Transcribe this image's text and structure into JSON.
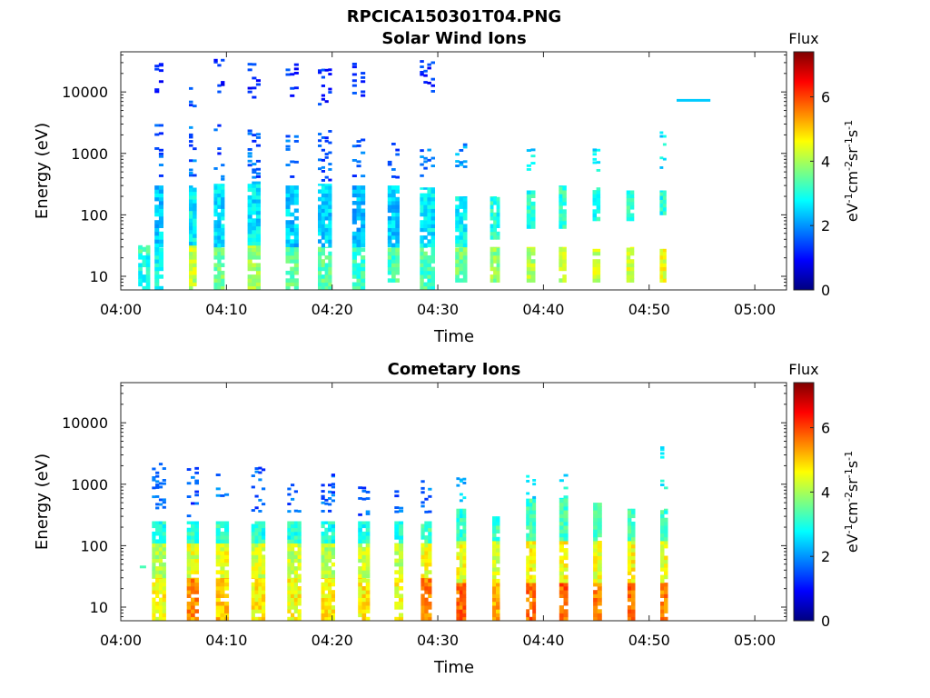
{
  "figure": {
    "title": "RPCICA150301T04.PNG"
  },
  "colorbar": {
    "label": "Flux",
    "unit_base": [
      "eV",
      "cm",
      "sr",
      "s"
    ],
    "unit_exp": [
      "-1",
      "-2",
      "-1",
      "-1"
    ],
    "range": [
      0,
      7.4
    ],
    "ticks": [
      0,
      2,
      4,
      6
    ],
    "stops": [
      "#00007f",
      "#0000ff",
      "#007fff",
      "#00ffff",
      "#7fff7f",
      "#ffff00",
      "#ff7f00",
      "#ff0000",
      "#7f0000"
    ]
  },
  "chart_data": [
    {
      "type": "heatmap",
      "title": "Solar Wind Ions",
      "xlabel": "Time",
      "ylabel": "Energy (eV)",
      "xlim": [
        "04:00",
        "05:03"
      ],
      "ylim": [
        6,
        45000
      ],
      "yscale": "log",
      "xticks": [
        "04:00",
        "04:10",
        "04:20",
        "04:30",
        "04:40",
        "04:50",
        "05:00"
      ],
      "yticks": [
        10,
        100,
        1000,
        10000
      ],
      "sweeps": [
        {
          "t": 2.2,
          "w": 1.1,
          "low": [
            [
              6,
              30,
              2.9
            ],
            [
              24,
              32,
              3.5
            ]
          ],
          "high": []
        },
        {
          "t": 3.6,
          "w": 0.8,
          "low": [
            [
              6,
              30,
              2.8
            ],
            [
              30,
              300,
              2.4
            ]
          ],
          "high": [
            [
              400,
              3000,
              1.6
            ],
            [
              8000,
              30000,
              1.2
            ]
          ]
        },
        {
          "t": 6.8,
          "w": 0.7,
          "low": [
            [
              6,
              32,
              4.2
            ],
            [
              32,
              300,
              2.7
            ]
          ],
          "high": [
            [
              400,
              3000,
              1.7
            ],
            [
              5000,
              12000,
              1.4
            ]
          ]
        },
        {
          "t": 9.3,
          "w": 1.0,
          "low": [
            [
              6,
              30,
              3.6
            ],
            [
              30,
              320,
              2.5
            ]
          ],
          "high": [
            [
              350,
              3000,
              1.5
            ],
            [
              8000,
              35000,
              1.1
            ]
          ]
        },
        {
          "t": 12.6,
          "w": 1.2,
          "low": [
            [
              6,
              32,
              3.9
            ],
            [
              32,
              350,
              2.6
            ]
          ],
          "high": [
            [
              400,
              2500,
              1.6
            ],
            [
              8000,
              30000,
              1.2
            ]
          ]
        },
        {
          "t": 16.2,
          "w": 1.2,
          "low": [
            [
              6,
              30,
              3.5
            ],
            [
              30,
              300,
              2.4
            ]
          ],
          "high": [
            [
              400,
              2000,
              1.6
            ],
            [
              8000,
              30000,
              1.2
            ]
          ]
        },
        {
          "t": 19.3,
          "w": 1.3,
          "low": [
            [
              6,
              30,
              3.4
            ],
            [
              30,
              320,
              2.5
            ]
          ],
          "high": [
            [
              350,
              2500,
              1.5
            ],
            [
              6000,
              25000,
              1.2
            ]
          ]
        },
        {
          "t": 22.5,
          "w": 1.2,
          "low": [
            [
              6,
              30,
              3.2
            ],
            [
              30,
              300,
              2.3
            ]
          ],
          "high": [
            [
              400,
              1800,
              1.6
            ],
            [
              8000,
              30000,
              1.2
            ]
          ]
        },
        {
          "t": 25.8,
          "w": 1.1,
          "low": [
            [
              8,
              30,
              3.3
            ],
            [
              30,
              300,
              2.4
            ]
          ],
          "high": [
            [
              400,
              1500,
              1.6
            ]
          ]
        },
        {
          "t": 29.0,
          "w": 1.4,
          "low": [
            [
              6,
              30,
              3.3
            ],
            [
              30,
              280,
              2.6
            ]
          ],
          "high": [
            [
              400,
              1200,
              1.7
            ],
            [
              10000,
              35000,
              1.2
            ]
          ]
        },
        {
          "t": 32.2,
          "w": 1.1,
          "low": [
            [
              8,
              30,
              3.6
            ],
            [
              30,
              200,
              2.8
            ]
          ],
          "high": [
            [
              600,
              1500,
              2.0
            ]
          ]
        },
        {
          "t": 35.4,
          "w": 0.9,
          "low": [
            [
              8,
              30,
              3.8
            ],
            [
              40,
              200,
              3.0
            ]
          ],
          "high": []
        },
        {
          "t": 38.8,
          "w": 0.8,
          "low": [
            [
              8,
              30,
              4.1
            ],
            [
              60,
              250,
              3.0
            ]
          ],
          "high": [
            [
              500,
              1200,
              2.6
            ]
          ]
        },
        {
          "t": 41.8,
          "w": 0.7,
          "low": [
            [
              8,
              30,
              4.2
            ],
            [
              60,
              300,
              3.1
            ]
          ],
          "high": []
        },
        {
          "t": 45.0,
          "w": 0.7,
          "low": [
            [
              8,
              28,
              4.3
            ],
            [
              80,
              280,
              3.0
            ]
          ],
          "high": [
            [
              500,
              1200,
              2.7
            ]
          ]
        },
        {
          "t": 48.2,
          "w": 0.7,
          "low": [
            [
              8,
              30,
              4.4
            ],
            [
              80,
              250,
              3.2
            ]
          ],
          "high": []
        },
        {
          "t": 51.3,
          "w": 0.6,
          "low": [
            [
              8,
              28,
              4.5
            ],
            [
              100,
              250,
              3.0
            ]
          ],
          "high": [
            [
              500,
              2500,
              2.7
            ]
          ]
        }
      ],
      "features": [
        {
          "t0": 52.6,
          "t1": 55.8,
          "e": 7300,
          "f": 2.4
        }
      ]
    },
    {
      "type": "heatmap",
      "title": "Cometary Ions",
      "xlabel": "Time",
      "ylabel": "Energy (eV)",
      "xlim": [
        "04:00",
        "05:03"
      ],
      "ylim": [
        6,
        45000
      ],
      "yscale": "log",
      "xticks": [
        "04:00",
        "04:10",
        "04:20",
        "04:30",
        "04:40",
        "04:50",
        "05:00"
      ],
      "yticks": [
        10,
        100,
        1000,
        10000
      ],
      "sweeps": [
        {
          "t": 3.6,
          "w": 1.3,
          "low": [
            [
              6,
              30,
              4.6
            ],
            [
              30,
              110,
              4.1
            ],
            [
              110,
              250,
              3.0
            ]
          ],
          "high": [
            [
              400,
              2500,
              1.6
            ]
          ]
        },
        {
          "t": 6.8,
          "w": 1.1,
          "low": [
            [
              6,
              30,
              5.4
            ],
            [
              30,
              110,
              4.4
            ],
            [
              110,
              250,
              3.1
            ]
          ],
          "high": [
            [
              300,
              2000,
              1.5
            ]
          ]
        },
        {
          "t": 9.6,
          "w": 1.2,
          "low": [
            [
              6,
              30,
              5.0
            ],
            [
              30,
              110,
              4.5
            ],
            [
              110,
              250,
              3.1
            ]
          ],
          "high": [
            [
              350,
              1500,
              1.7
            ]
          ]
        },
        {
          "t": 13.0,
          "w": 1.3,
          "low": [
            [
              6,
              30,
              4.7
            ],
            [
              30,
              110,
              4.3
            ],
            [
              110,
              250,
              3.0
            ]
          ],
          "high": [
            [
              350,
              2500,
              1.6
            ]
          ]
        },
        {
          "t": 16.4,
          "w": 1.3,
          "low": [
            [
              6,
              30,
              4.6
            ],
            [
              30,
              110,
              4.2
            ],
            [
              110,
              250,
              3.0
            ]
          ],
          "high": [
            [
              350,
              1200,
              1.6
            ]
          ]
        },
        {
          "t": 19.6,
          "w": 1.3,
          "low": [
            [
              6,
              30,
              4.7
            ],
            [
              30,
              110,
              4.1
            ],
            [
              110,
              250,
              2.9
            ]
          ],
          "high": [
            [
              300,
              1500,
              1.6
            ]
          ]
        },
        {
          "t": 23.0,
          "w": 1.1,
          "low": [
            [
              6,
              30,
              4.7
            ],
            [
              30,
              110,
              4.2
            ],
            [
              110,
              250,
              3.0
            ]
          ],
          "high": [
            [
              300,
              1200,
              1.6
            ]
          ]
        },
        {
          "t": 26.3,
          "w": 0.8,
          "low": [
            [
              6,
              30,
              4.6
            ],
            [
              30,
              110,
              4.1
            ],
            [
              110,
              250,
              3.0
            ]
          ],
          "high": [
            [
              300,
              900,
              1.7
            ]
          ]
        },
        {
          "t": 28.9,
          "w": 1.0,
          "low": [
            [
              6,
              30,
              5.6
            ],
            [
              30,
              110,
              4.5
            ],
            [
              110,
              250,
              3.2
            ]
          ],
          "high": [
            [
              300,
              1200,
              1.7
            ]
          ]
        },
        {
          "t": 32.2,
          "w": 0.9,
          "low": [
            [
              6,
              25,
              5.7
            ],
            [
              25,
              120,
              4.5
            ],
            [
              120,
              400,
              3.1
            ]
          ],
          "high": [
            [
              500,
              1300,
              2.3
            ]
          ]
        },
        {
          "t": 35.5,
          "w": 0.7,
          "low": [
            [
              6,
              25,
              5.3
            ],
            [
              25,
              120,
              4.4
            ],
            [
              120,
              300,
              3.2
            ]
          ],
          "high": []
        },
        {
          "t": 38.8,
          "w": 0.9,
          "low": [
            [
              6,
              25,
              5.7
            ],
            [
              25,
              120,
              4.6
            ],
            [
              120,
              600,
              3.2
            ]
          ],
          "high": [
            [
              600,
              1500,
              2.7
            ]
          ]
        },
        {
          "t": 41.9,
          "w": 0.8,
          "low": [
            [
              6,
              25,
              5.8
            ],
            [
              25,
              120,
              4.6
            ],
            [
              120,
              600,
              3.2
            ]
          ],
          "high": [
            [
              600,
              1500,
              2.8
            ]
          ]
        },
        {
          "t": 45.1,
          "w": 0.8,
          "low": [
            [
              6,
              25,
              5.6
            ],
            [
              25,
              120,
              4.5
            ],
            [
              120,
              500,
              3.2
            ]
          ],
          "high": []
        },
        {
          "t": 48.3,
          "w": 0.7,
          "low": [
            [
              6,
              25,
              5.7
            ],
            [
              25,
              120,
              4.6
            ],
            [
              120,
              400,
              3.3
            ]
          ],
          "high": []
        },
        {
          "t": 51.4,
          "w": 0.7,
          "low": [
            [
              6,
              25,
              5.5
            ],
            [
              25,
              120,
              4.5
            ],
            [
              120,
              400,
              3.2
            ]
          ],
          "high": [
            [
              800,
              4500,
              2.8
            ]
          ]
        }
      ],
      "features": [
        {
          "t0": 1.8,
          "t1": 2.4,
          "e": 45,
          "f": 3.3
        }
      ]
    }
  ]
}
